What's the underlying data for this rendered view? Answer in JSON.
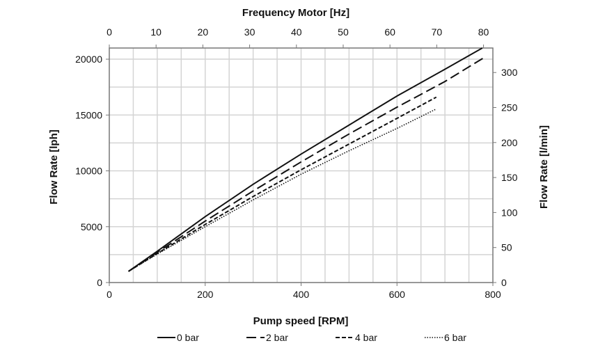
{
  "chart_data": {
    "type": "line",
    "xlabel": "Pump speed [RPM]",
    "ylabel": "Flow Rate [lph]",
    "x2label": "Frequency Motor [Hz]",
    "y2label": "Flow Rate [l/min]",
    "xlim": [
      0,
      800
    ],
    "ylim": [
      0,
      21000
    ],
    "x2lim": [
      0,
      82
    ],
    "y2lim": [
      0,
      335
    ],
    "xticks": [
      0,
      200,
      400,
      600,
      800
    ],
    "yticks": [
      0,
      5000,
      10000,
      15000,
      20000
    ],
    "x2ticks": [
      0,
      10,
      20,
      30,
      40,
      50,
      60,
      70,
      80
    ],
    "y2ticks": [
      0,
      50,
      100,
      150,
      200,
      250,
      300
    ],
    "grid": true,
    "legend_position": "bottom",
    "series": [
      {
        "name": "0 bar",
        "dash": "solid",
        "x": [
          40,
          100,
          200,
          300,
          400,
          500,
          600,
          700,
          778
        ],
        "y": [
          1000,
          2800,
          5900,
          8800,
          11500,
          14100,
          16700,
          19100,
          21000
        ]
      },
      {
        "name": "2 bar",
        "dash": "long-dash",
        "x": [
          40,
          100,
          200,
          300,
          400,
          500,
          600,
          700,
          780
        ],
        "y": [
          1000,
          2700,
          5500,
          8200,
          10800,
          13300,
          15700,
          18000,
          20100
        ]
      },
      {
        "name": "4 bar",
        "dash": "short-dash",
        "x": [
          40,
          100,
          200,
          300,
          400,
          500,
          600,
          682
        ],
        "y": [
          1000,
          2600,
          5200,
          7700,
          10100,
          12400,
          14700,
          16600
        ]
      },
      {
        "name": "6 bar",
        "dash": "dotted",
        "x": [
          40,
          100,
          200,
          300,
          400,
          500,
          600,
          680
        ],
        "y": [
          1000,
          2550,
          5000,
          7400,
          9700,
          11800,
          13800,
          15500
        ]
      }
    ]
  }
}
